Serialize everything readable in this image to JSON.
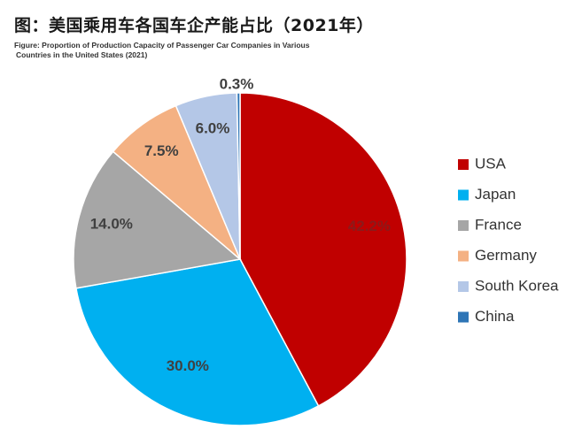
{
  "header": {
    "title": "图：美国乘用车各国车企产能占比（2021年）",
    "subtitle_line1": "Figure: Proportion of Production Capacity of Passenger Car Companies in Various",
    "subtitle_line2": "Countries in the United States (2021)"
  },
  "chart_data": {
    "type": "pie",
    "title": "图：美国乘用车各国车企产能占比（2021年）",
    "legend_position": "right",
    "start_angle": "12 o'clock",
    "direction": "clockwise",
    "series": [
      {
        "name": "USA",
        "value": 42.2,
        "label": "42.2%",
        "color": "#c00000",
        "label_color": "#8b1a1a"
      },
      {
        "name": "Japan",
        "value": 30.0,
        "label": "30.0%",
        "color": "#00b0f0",
        "label_color": "#404040"
      },
      {
        "name": "France",
        "value": 14.0,
        "label": "14.0%",
        "color": "#a6a6a6",
        "label_color": "#404040"
      },
      {
        "name": "Germany",
        "value": 7.5,
        "label": "7.5%",
        "color": "#f4b183",
        "label_color": "#404040"
      },
      {
        "name": "South Korea",
        "value": 6.0,
        "label": "6.0%",
        "color": "#b4c7e7",
        "label_color": "#404040"
      },
      {
        "name": "China",
        "value": 0.3,
        "label": "0.3%",
        "color": "#2e75b6",
        "label_color": "#404040"
      }
    ]
  }
}
